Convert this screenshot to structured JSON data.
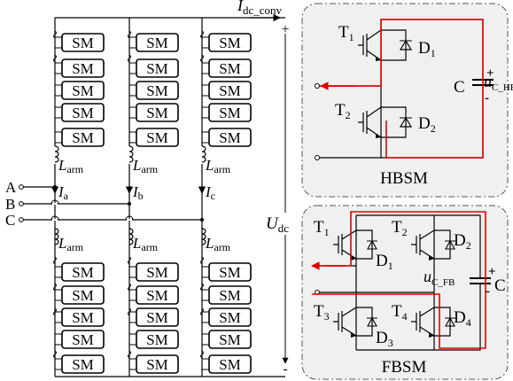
{
  "converter": {
    "sm_label": "SM",
    "arm_inductor_label": "L",
    "arm_inductor_sub": "arm",
    "dc_current_label": "I",
    "dc_current_sub": "dc_conv",
    "dc_voltage_label": "U",
    "dc_voltage_sub": "dc",
    "plus_sign": "+",
    "minus_sign": "-",
    "phases": [
      {
        "terminal": "A",
        "current": "I",
        "current_sub": "a"
      },
      {
        "terminal": "B",
        "current": "I",
        "current_sub": "b"
      },
      {
        "terminal": "C",
        "current": "I",
        "current_sub": "c"
      }
    ]
  },
  "hbsm": {
    "title": "HBSM",
    "t1": "T",
    "t1_sub": "1",
    "t2": "T",
    "t2_sub": "2",
    "d1": "D",
    "d1_sub": "1",
    "d2": "D",
    "d2_sub": "2",
    "cap": "C",
    "voltage": "u",
    "voltage_sub": "C_HB",
    "plus": "+",
    "minus": "-"
  },
  "fbsm": {
    "title": "FBSM",
    "t1": "T",
    "t1_sub": "1",
    "t2": "T",
    "t2_sub": "2",
    "t3": "T",
    "t3_sub": "3",
    "t4": "T",
    "t4_sub": "4",
    "d1": "D",
    "d1_sub": "1",
    "d2": "D",
    "d2_sub": "2",
    "d3": "D",
    "d3_sub": "3",
    "d4": "D",
    "d4_sub": "4",
    "cap": "C",
    "voltage": "u",
    "voltage_sub": "C_FB",
    "plus": "+",
    "minus": "-"
  },
  "colors": {
    "current_path": "#e00000",
    "panel_fill": "#f0f0f0"
  }
}
